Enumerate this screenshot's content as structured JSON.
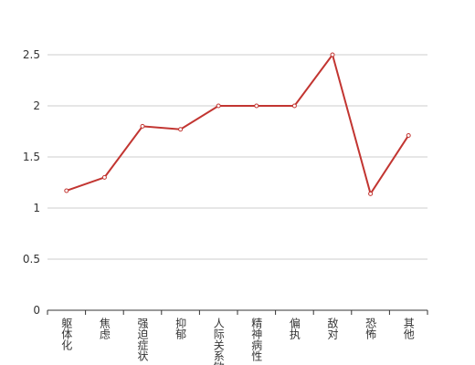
{
  "chart_data": {
    "type": "line",
    "categories": [
      "躯体化",
      "焦虑",
      "强迫症状",
      "抑郁",
      "人际关系敏感",
      "精神病性",
      "偏执",
      "敌对",
      "恐怖",
      "其他"
    ],
    "series": [
      {
        "color": "#c23531",
        "values": [
          1.17,
          1.3,
          1.8,
          1.77,
          2.0,
          2.0,
          2.0,
          2.5,
          1.14,
          1.71
        ]
      }
    ],
    "ylim": [
      0,
      2.5
    ],
    "yticks": [
      0,
      0.5,
      1,
      1.5,
      2,
      2.5
    ],
    "grid": true
  }
}
